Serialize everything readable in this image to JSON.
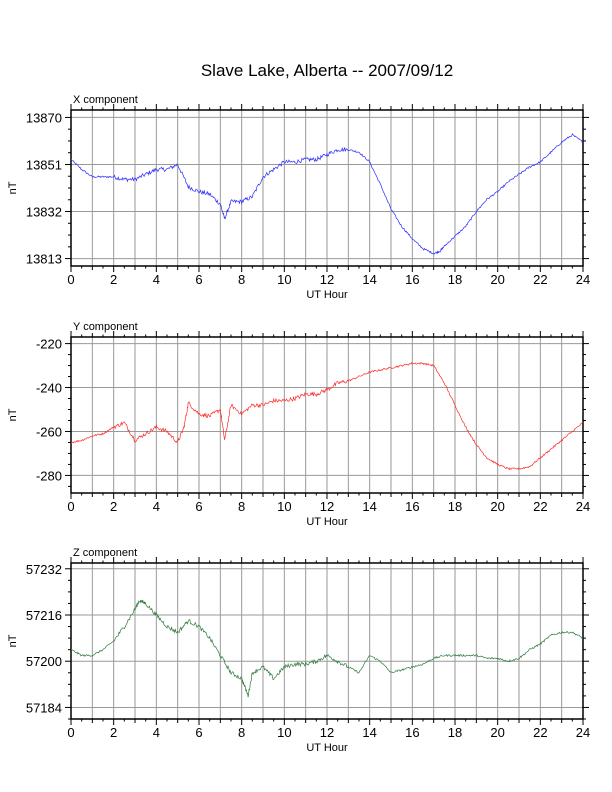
{
  "page": {
    "title": "Slave Lake, Alberta -- 2007/09/12"
  },
  "chart_data": [
    {
      "type": "line",
      "panel_label": "X component",
      "xlabel": "UT Hour",
      "ylabel": "nT",
      "xlim": [
        0,
        24
      ],
      "ylim": [
        13810,
        13873
      ],
      "xticks": [
        "0",
        "2",
        "4",
        "6",
        "8",
        "10",
        "12",
        "14",
        "16",
        "18",
        "20",
        "22",
        "24"
      ],
      "yticks": [
        13870,
        13851,
        13832,
        13813
      ],
      "grid": true,
      "color": "#2b2bff",
      "series": [
        {
          "x": [
            0,
            0.5,
            1,
            1.5,
            2,
            2.5,
            3,
            3.5,
            4,
            4.5,
            5,
            5.5,
            6,
            6.5,
            7,
            7.2,
            7.5,
            8,
            8.5,
            9,
            9.5,
            10,
            10.5,
            11,
            11.5,
            12,
            12.5,
            13,
            13.5,
            14,
            14.5,
            15,
            15.5,
            16,
            16.5,
            17,
            17.3,
            17.5,
            18,
            18.5,
            19,
            19.5,
            20,
            20.5,
            21,
            21.5,
            22,
            22.5,
            23,
            23.5,
            24
          ],
          "values": [
            13853,
            13849,
            13846,
            13846,
            13846,
            13845,
            13845,
            13847,
            13849,
            13849,
            13851,
            13842,
            13840,
            13839,
            13835,
            13829,
            13836,
            13836,
            13838,
            13846,
            13849,
            13852,
            13852,
            13853,
            13853,
            13855,
            13857,
            13857,
            13856,
            13852,
            13843,
            13833,
            13826,
            13821,
            13817,
            13815,
            13816,
            13818,
            13822,
            13826,
            13832,
            13837,
            13840,
            13844,
            13847,
            13850,
            13852,
            13856,
            13860,
            13863,
            13860
          ]
        }
      ]
    },
    {
      "type": "line",
      "panel_label": "Y component",
      "xlabel": "UT Hour",
      "ylabel": "nT",
      "xlim": [
        0,
        24
      ],
      "ylim": [
        -288,
        -217
      ],
      "xticks": [
        "0",
        "2",
        "4",
        "6",
        "8",
        "10",
        "12",
        "14",
        "16",
        "18",
        "20",
        "22",
        "24"
      ],
      "yticks": [
        -220,
        -240,
        -260,
        -280
      ],
      "grid": true,
      "color": "#ff2a2a",
      "series": [
        {
          "x": [
            0,
            0.5,
            1,
            1.5,
            2,
            2.5,
            3,
            3.5,
            4,
            4.5,
            5,
            5.3,
            5.5,
            6,
            6.5,
            7,
            7.2,
            7.5,
            8,
            8.5,
            9,
            9.5,
            10,
            10.5,
            11,
            11.5,
            12,
            12.5,
            13,
            13.5,
            14,
            14.5,
            15,
            15.5,
            16,
            16.5,
            17,
            17.5,
            18,
            18.5,
            19,
            19.5,
            20,
            20.5,
            21,
            21.5,
            22,
            22.5,
            23,
            23.5,
            24
          ],
          "values": [
            -265,
            -264,
            -262,
            -261,
            -258,
            -256,
            -264,
            -261,
            -258,
            -260,
            -265,
            -258,
            -247,
            -252,
            -253,
            -250,
            -264,
            -248,
            -252,
            -248,
            -248,
            -246,
            -246,
            -245,
            -243,
            -243,
            -241,
            -238,
            -237,
            -235,
            -233,
            -232,
            -231,
            -230,
            -229,
            -229,
            -230,
            -238,
            -248,
            -258,
            -266,
            -272,
            -275,
            -277,
            -277,
            -276,
            -272,
            -268,
            -264,
            -260,
            -256
          ]
        }
      ]
    },
    {
      "type": "line",
      "panel_label": "Z component",
      "xlabel": "UT Hour",
      "ylabel": "nT",
      "xlim": [
        0,
        24
      ],
      "ylim": [
        57180,
        57234
      ],
      "xticks": [
        "0",
        "2",
        "4",
        "6",
        "8",
        "10",
        "12",
        "14",
        "16",
        "18",
        "20",
        "22",
        "24"
      ],
      "yticks": [
        57232,
        57216,
        57200,
        57184
      ],
      "grid": true,
      "color": "#2e7a3c",
      "series": [
        {
          "x": [
            0,
            0.5,
            1,
            1.5,
            2,
            2.5,
            3,
            3.2,
            3.5,
            4,
            4.5,
            5,
            5.5,
            6,
            6.5,
            7,
            7.5,
            8,
            8.3,
            8.5,
            9,
            9.5,
            10,
            10.5,
            11,
            11.5,
            12,
            12.5,
            13,
            13.5,
            14,
            14.5,
            15,
            15.5,
            16,
            16.5,
            17,
            17.5,
            18,
            18.5,
            19,
            19.5,
            20,
            20.5,
            21,
            21.5,
            22,
            22.5,
            23,
            23.5,
            24
          ],
          "values": [
            57204,
            57202,
            57202,
            57204,
            57207,
            57212,
            57218,
            57221,
            57220,
            57216,
            57212,
            57210,
            57214,
            57212,
            57208,
            57202,
            57196,
            57194,
            57188,
            57196,
            57198,
            57194,
            57198,
            57199,
            57199,
            57200,
            57202,
            57200,
            57198,
            57196,
            57202,
            57200,
            57196,
            57197,
            57198,
            57199,
            57201,
            57202,
            57202,
            57202,
            57202,
            57201,
            57201,
            57200,
            57201,
            57204,
            57206,
            57209,
            57210,
            57210,
            57208
          ]
        }
      ]
    }
  ]
}
